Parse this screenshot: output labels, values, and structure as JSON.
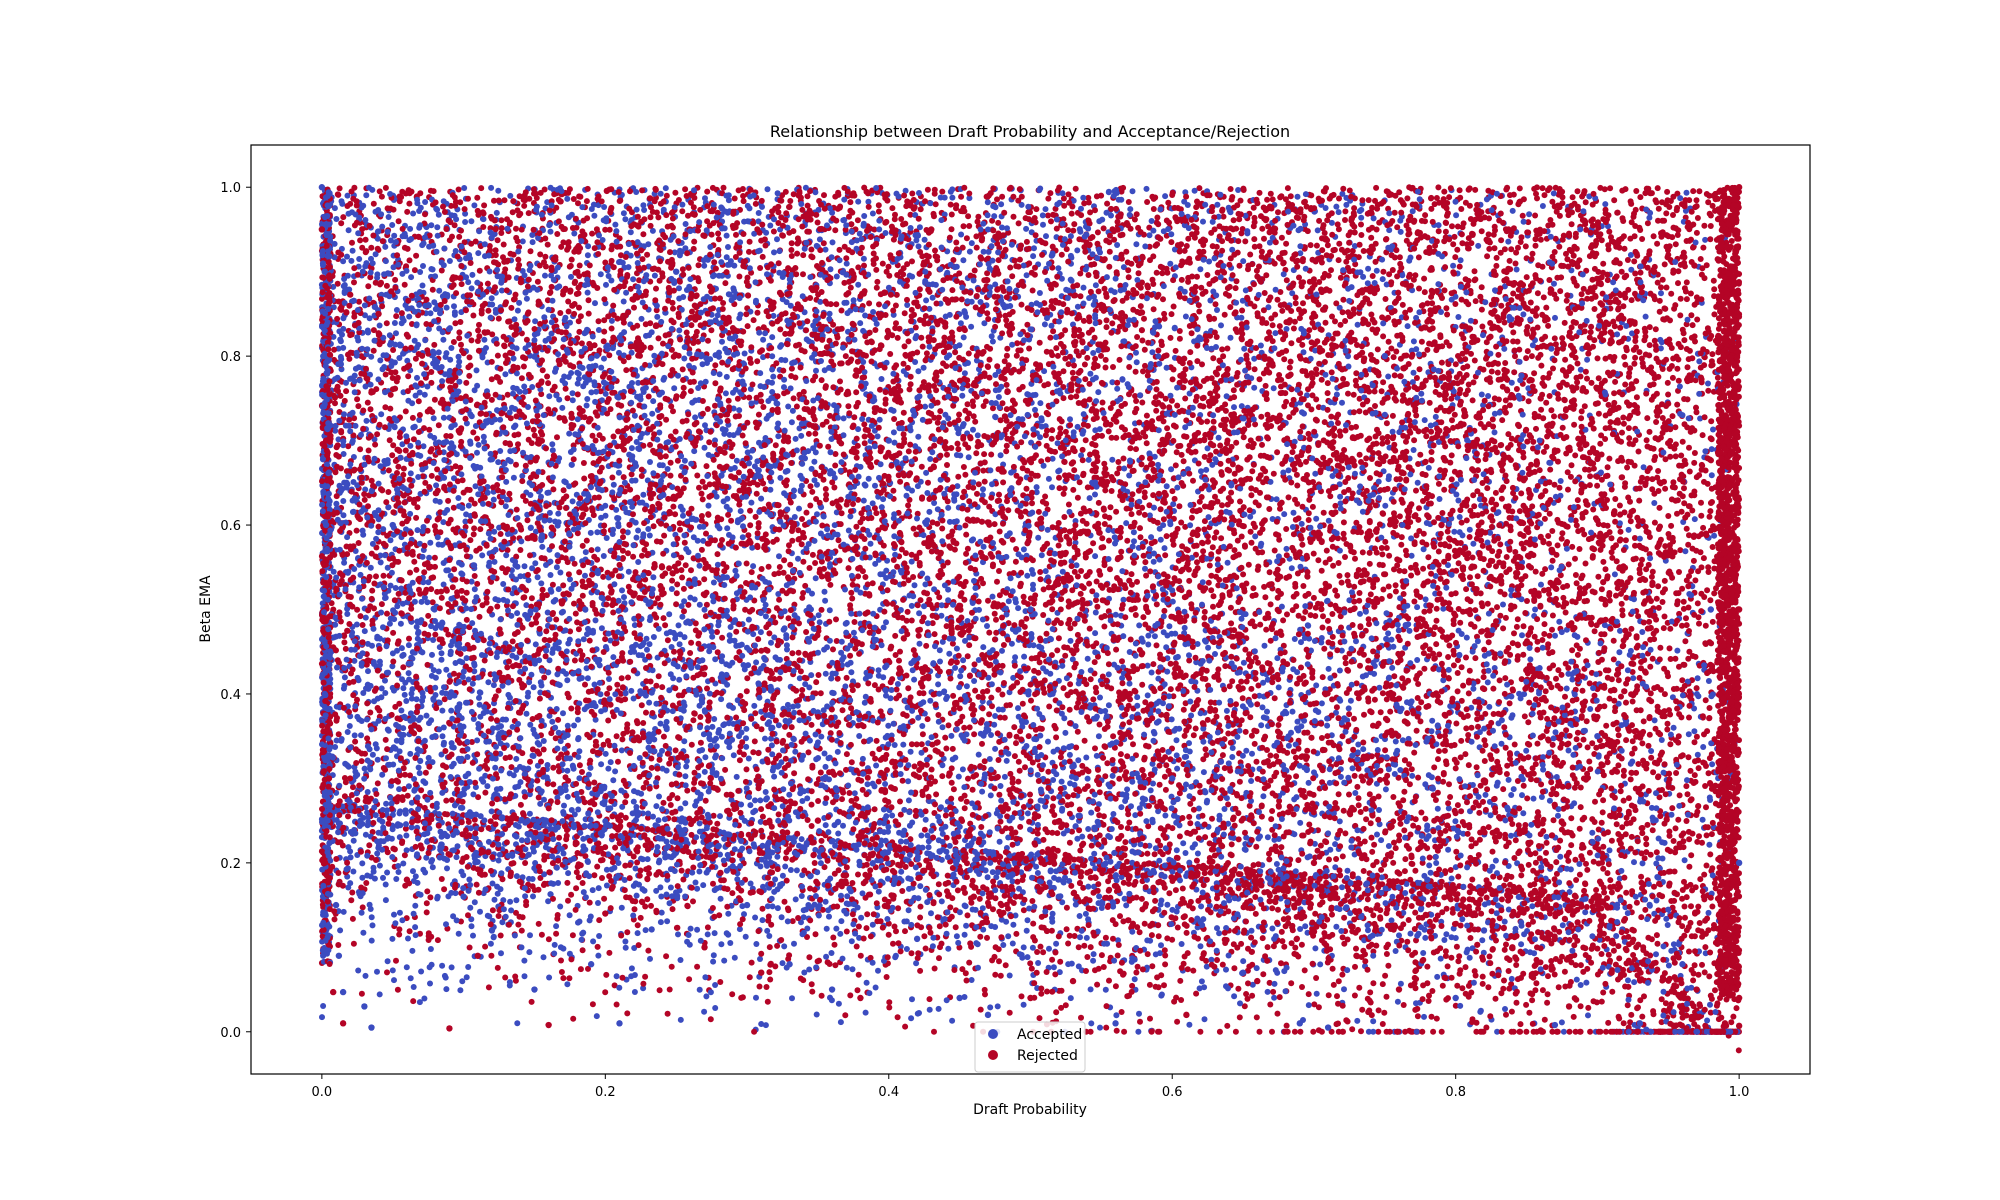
{
  "chart_data": {
    "type": "scatter",
    "title": "Relationship between Draft Probability and Acceptance/Rejection",
    "xlabel": "Draft Probability",
    "ylabel": "Beta EMA",
    "xlim": [
      -0.05,
      1.05
    ],
    "ylim": [
      -0.05,
      1.05
    ],
    "xticks": [
      "0.0",
      "0.2",
      "0.4",
      "0.6",
      "0.8",
      "1.0"
    ],
    "yticks": [
      "0.0",
      "0.2",
      "0.4",
      "0.6",
      "0.8",
      "1.0"
    ],
    "grid": false,
    "legend_position": "bottom-center",
    "series": [
      {
        "name": "Accepted",
        "color": "#3b4cc0",
        "points": [
          [
            0.0,
            1.0
          ],
          [
            0.002,
            0.9
          ],
          [
            0.001,
            0.8
          ],
          [
            0.003,
            0.6
          ],
          [
            0.002,
            0.4
          ],
          [
            0.004,
            0.25
          ],
          [
            0.01,
            0.15
          ],
          [
            0.012,
            0.09
          ],
          [
            0.015,
            0.047
          ],
          [
            0.03,
            0.03
          ],
          [
            0.035,
            0.005
          ],
          [
            0.05,
            0.6
          ],
          [
            0.08,
            0.35
          ],
          [
            0.1,
            0.16
          ],
          [
            0.12,
            0.12
          ],
          [
            0.15,
            0.05
          ],
          [
            0.19,
            0.08
          ],
          [
            0.21,
            0.01
          ],
          [
            0.25,
            0.9
          ],
          [
            0.28,
            0.22
          ],
          [
            0.3,
            0.15
          ],
          [
            0.33,
            0.08
          ],
          [
            0.36,
            0.05
          ],
          [
            0.4,
            0.7
          ],
          [
            0.42,
            0.11
          ],
          [
            0.45,
            0.04
          ],
          [
            0.47,
            0.02
          ],
          [
            0.5,
            0.5
          ],
          [
            0.52,
            0.16
          ],
          [
            0.56,
            0.01
          ],
          [
            0.6,
            0.3
          ],
          [
            0.62,
            0.13
          ],
          [
            0.65,
            0.07
          ],
          [
            0.69,
            0.01
          ],
          [
            0.71,
            0.005
          ],
          [
            0.75,
            0.8
          ],
          [
            0.78,
            0.18
          ],
          [
            0.8,
            0.04
          ],
          [
            0.82,
            0.12
          ],
          [
            0.87,
            0.008
          ],
          [
            0.9,
            0.35
          ],
          [
            0.93,
            0.01
          ],
          [
            0.96,
            0.08
          ],
          [
            0.98,
            0.5
          ],
          [
            1.0,
            0.2
          ]
        ]
      },
      {
        "name": "Rejected",
        "color": "#b40426",
        "points": [
          [
            0.0,
            0.95
          ],
          [
            0.003,
            0.7
          ],
          [
            0.005,
            0.3
          ],
          [
            0.008,
            0.047
          ],
          [
            0.015,
            0.01
          ],
          [
            0.04,
            0.85
          ],
          [
            0.06,
            0.18
          ],
          [
            0.09,
            0.004
          ],
          [
            0.11,
            0.09
          ],
          [
            0.14,
            0.45
          ],
          [
            0.16,
            0.008
          ],
          [
            0.2,
            0.14
          ],
          [
            0.24,
            0.55
          ],
          [
            0.27,
            0.1
          ],
          [
            0.31,
            0.07
          ],
          [
            0.35,
            0.25
          ],
          [
            0.38,
            0.04
          ],
          [
            0.43,
            0.95
          ],
          [
            0.46,
            0.16
          ],
          [
            0.5,
            0.04
          ],
          [
            0.53,
            0.06
          ],
          [
            0.57,
            0.4
          ],
          [
            0.61,
            0.02
          ],
          [
            0.63,
            0.65
          ],
          [
            0.66,
            0.06
          ],
          [
            0.7,
            0.2
          ],
          [
            0.73,
            0.09
          ],
          [
            0.76,
            0.05
          ],
          [
            0.79,
            0.6
          ],
          [
            0.81,
            0.14
          ],
          [
            0.84,
            0.1
          ],
          [
            0.86,
            0.75
          ],
          [
            0.88,
            0.03
          ],
          [
            0.91,
            0.07
          ],
          [
            0.94,
            0.9
          ],
          [
            0.97,
            0.05
          ],
          [
            0.99,
            0.01
          ],
          [
            1.0,
            0.007
          ],
          [
            1.0,
            0.04
          ],
          [
            1.0,
            0.5
          ],
          [
            1.0,
            1.0
          ]
        ]
      }
    ],
    "dense_region_note_value_min": 0.3
  }
}
